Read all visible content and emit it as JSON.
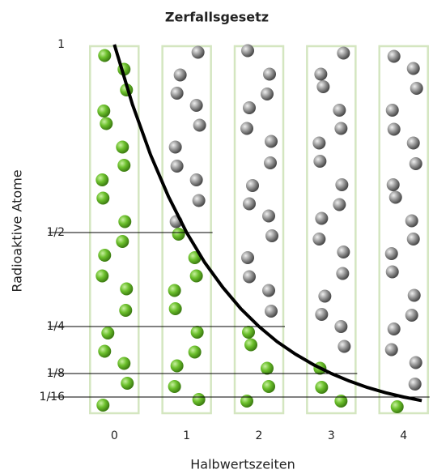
{
  "chart_data": {
    "type": "line",
    "title": "Zerfallsgesetz",
    "x_label": "Halbwertszeiten",
    "y_label": "Radioaktive Atome",
    "xlim": [
      -0.35,
      4.35
    ],
    "xticks": [
      0,
      1,
      2,
      3,
      4
    ],
    "ylim": [
      0,
      1
    ],
    "yticks": [
      1,
      {
        "value": 0.5,
        "label": "1/2"
      },
      {
        "value": 0.25,
        "label": "1/4"
      },
      {
        "value": 0.125,
        "label": "1/8"
      },
      {
        "value": 0.0625,
        "label": "1/16"
      }
    ],
    "color": "#000000",
    "x": [
      0,
      0.25,
      0.5,
      0.75,
      1,
      1.25,
      1.5,
      1.75,
      2,
      2.25,
      2.5,
      2.75,
      3,
      3.25,
      3.5,
      3.75,
      4,
      4.25
    ],
    "values": [
      1,
      0.841,
      0.707,
      0.595,
      0.5,
      0.42,
      0.354,
      0.297,
      0.25,
      0.21,
      0.177,
      0.149,
      0.125,
      0.105,
      0.088,
      0.074,
      0.0625,
      0.053
    ]
  }
}
